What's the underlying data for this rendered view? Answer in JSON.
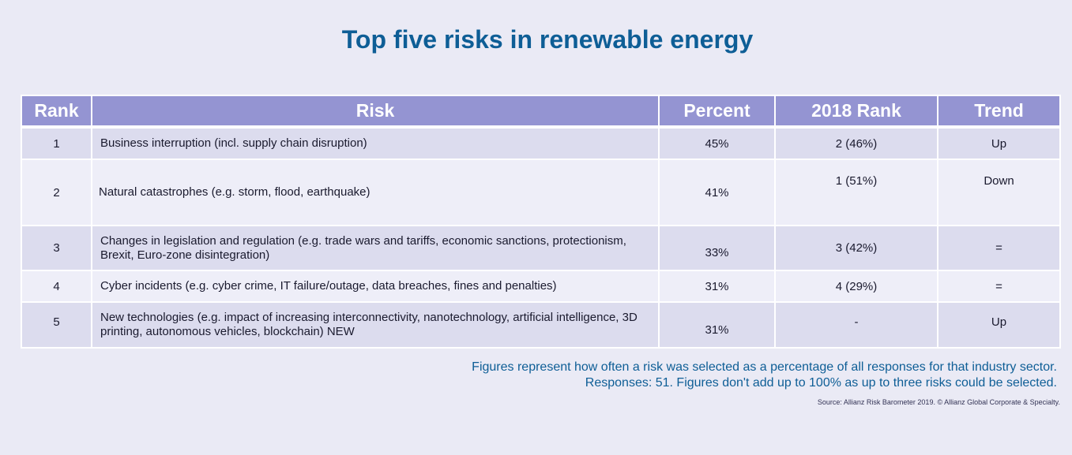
{
  "chart_data": {
    "type": "table",
    "title": "Top five risks in renewable energy",
    "columns": [
      "Rank",
      "Risk",
      "Percent",
      "2018 Rank",
      "Trend"
    ],
    "rows": [
      {
        "rank": "1",
        "risk": "Business interruption (incl. supply chain disruption)",
        "percent": "45%",
        "rank_2018": "2 (46%)",
        "trend": "Up"
      },
      {
        "rank": "2",
        "risk": "Natural catastrophes (e.g. storm, flood, earthquake)",
        "percent": "41%",
        "rank_2018": "1 (51%)",
        "trend": "Down"
      },
      {
        "rank": "3",
        "risk": "Changes in legislation and regulation (e.g. trade wars and tariffs, economic sanctions, protectionism, Brexit, Euro-zone disintegration)",
        "percent": "33%",
        "rank_2018": "3 (42%)",
        "trend": "="
      },
      {
        "rank": "4",
        "risk": "Cyber incidents (e.g. cyber crime, IT failure/outage, data breaches, fines and penalties)",
        "percent": "31%",
        "rank_2018": "4 (29%)",
        "trend": "="
      },
      {
        "rank": "5",
        "risk": "New technologies (e.g. impact of increasing interconnectivity, nanotechnology, artificial intelligence, 3D printing, autonomous vehicles, blockchain) NEW",
        "percent": "31%",
        "rank_2018": "-",
        "trend": "Up"
      }
    ],
    "notes": [
      "Figures represent how often a risk was selected as a percentage of all responses for that industry sector.",
      "Responses: 51. Figures don't add up to 100% as up to three risks could be selected."
    ],
    "source": "Source: Allianz Risk Barometer 2019. © Allianz Global Corporate & Specialty."
  },
  "colors": {
    "background": "#eaeaf5",
    "title": "#0e5e96",
    "header": "#9494d2",
    "row_odd": "#dcdcee",
    "row_even": "#eeeef8"
  }
}
